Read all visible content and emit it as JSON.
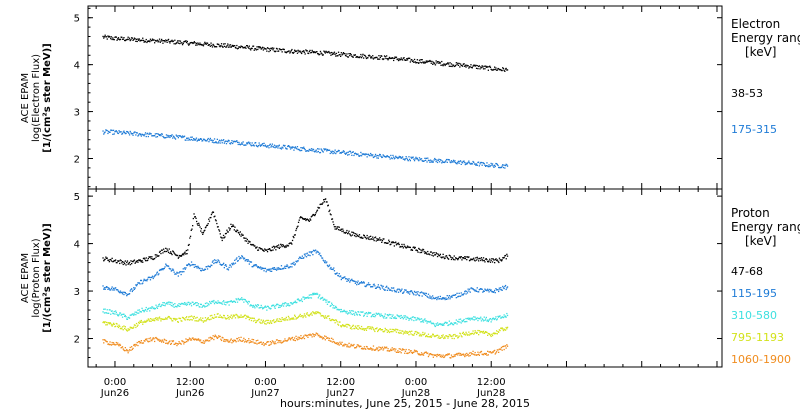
{
  "chart_data": {
    "type": "scatter",
    "x_axis": {
      "title": "hours:minutes, June 25, 2015 - June 28, 2015",
      "range_hours": [
        -4.3,
        96.8
      ],
      "ticks": [
        {
          "hours": 0,
          "time": "0:00",
          "date": "Jun26"
        },
        {
          "hours": 12,
          "time": "12:00",
          "date": "Jun26"
        },
        {
          "hours": 24,
          "time": "0:00",
          "date": "Jun27"
        },
        {
          "hours": 36,
          "time": "12:00",
          "date": "Jun27"
        },
        {
          "hours": 48,
          "time": "0:00",
          "date": "Jun28"
        },
        {
          "hours": 60,
          "time": "12:00",
          "date": "Jun28"
        }
      ]
    },
    "panels": [
      {
        "id": "electron",
        "ylabel": [
          "ACE EPAM",
          "log(Electron Flux)",
          "[1/(cm²s ster MeV)]"
        ],
        "ylim": [
          1.35,
          5.25
        ],
        "yticks": [
          2,
          3,
          4,
          5
        ],
        "legend": {
          "title": [
            "Electron",
            "Energy ranges"
          ],
          "unit": "[keV]"
        },
        "series": [
          {
            "name": "38-53",
            "color": "#000000",
            "x": [
              -2,
              0,
              4,
              8,
              12,
              16,
              20,
              24,
              28,
              32,
              36,
              40,
              44,
              48,
              52,
              56,
              60,
              62.5
            ],
            "y": [
              4.6,
              4.57,
              4.54,
              4.51,
              4.47,
              4.43,
              4.39,
              4.34,
              4.3,
              4.27,
              4.23,
              4.19,
              4.15,
              4.09,
              4.04,
              3.99,
              3.93,
              3.9
            ]
          },
          {
            "name": "175-315",
            "color": "#1e7bd6",
            "x": [
              -2,
              0,
              4,
              8,
              12,
              16,
              20,
              24,
              28,
              32,
              36,
              40,
              44,
              48,
              52,
              56,
              60,
              62.5
            ],
            "y": [
              2.58,
              2.57,
              2.53,
              2.49,
              2.44,
              2.39,
              2.35,
              2.29,
              2.24,
              2.19,
              2.14,
              2.09,
              2.04,
              2.0,
              1.96,
              1.92,
              1.87,
              1.85
            ]
          }
        ]
      },
      {
        "id": "proton",
        "ylabel": [
          "ACE EPAM",
          "log(Proton Flux)",
          "[1/(cm²s ster MeV)]"
        ],
        "ylim": [
          1.4,
          5.15
        ],
        "yticks": [
          2,
          3,
          4,
          5
        ],
        "legend": {
          "title": [
            "Proton",
            "Energy ranges"
          ],
          "unit": "[keV]"
        },
        "series": [
          {
            "name": "47-68",
            "color": "#000000",
            "x": [
              -2,
              0,
              2,
              4,
              6,
              8,
              10,
              11.5,
              12.5,
              14,
              15.5,
              17,
              18.5,
              20,
              22,
              24,
              26,
              28,
              29.5,
              31,
              32.5,
              33.5,
              35,
              38,
              42,
              46,
              49,
              52,
              55,
              58,
              61,
              62.5
            ],
            "y": [
              3.7,
              3.65,
              3.6,
              3.65,
              3.72,
              3.9,
              3.75,
              3.85,
              4.6,
              4.2,
              4.7,
              4.1,
              4.4,
              4.2,
              3.95,
              3.85,
              3.95,
              4.0,
              4.55,
              4.5,
              4.8,
              4.95,
              4.35,
              4.2,
              4.1,
              3.95,
              3.85,
              3.75,
              3.7,
              3.68,
              3.65,
              3.75
            ]
          },
          {
            "name": "115-195",
            "color": "#1e7bd6",
            "x": [
              -2,
              0,
              2,
              4,
              6,
              8,
              10,
              12,
              14,
              16,
              18,
              20,
              22,
              24,
              26,
              28,
              30,
              32,
              34,
              36,
              38,
              42,
              46,
              49,
              51,
              54,
              57,
              60,
              62.5
            ],
            "y": [
              3.1,
              3.05,
              2.95,
              3.2,
              3.3,
              3.55,
              3.35,
              3.6,
              3.45,
              3.65,
              3.5,
              3.75,
              3.55,
              3.45,
              3.5,
              3.55,
              3.75,
              3.85,
              3.55,
              3.3,
              3.2,
              3.1,
              3.0,
              2.95,
              2.85,
              2.9,
              3.05,
              3.0,
              3.1
            ]
          },
          {
            "name": "310-580",
            "color": "#3ee0e0",
            "x": [
              -2,
              0,
              2,
              4,
              6,
              8,
              10,
              12,
              14,
              16,
              18,
              20,
              22,
              24,
              26,
              28,
              30,
              32,
              34,
              36,
              38,
              42,
              46,
              49,
              51,
              54,
              57,
              60,
              62.5
            ],
            "y": [
              2.6,
              2.55,
              2.45,
              2.6,
              2.65,
              2.75,
              2.7,
              2.75,
              2.7,
              2.8,
              2.75,
              2.85,
              2.7,
              2.65,
              2.7,
              2.75,
              2.85,
              2.95,
              2.75,
              2.6,
              2.55,
              2.5,
              2.45,
              2.4,
              2.3,
              2.35,
              2.45,
              2.4,
              2.5
            ]
          },
          {
            "name": "795-1193",
            "color": "#d2e21a",
            "x": [
              -2,
              0,
              2,
              4,
              6,
              8,
              10,
              12,
              14,
              16,
              18,
              20,
              22,
              24,
              26,
              28,
              30,
              32,
              34,
              36,
              38,
              42,
              46,
              49,
              51,
              54,
              57,
              60,
              62.5
            ],
            "y": [
              2.35,
              2.3,
              2.2,
              2.35,
              2.4,
              2.45,
              2.4,
              2.45,
              2.4,
              2.5,
              2.45,
              2.5,
              2.4,
              2.35,
              2.4,
              2.45,
              2.5,
              2.55,
              2.45,
              2.3,
              2.25,
              2.2,
              2.15,
              2.1,
              2.05,
              2.05,
              2.15,
              2.1,
              2.25
            ]
          },
          {
            "name": "1060-1900",
            "color": "#f08c1e",
            "x": [
              -2,
              0,
              2,
              4,
              6,
              8,
              10,
              12,
              14,
              16,
              18,
              20,
              22,
              24,
              26,
              28,
              30,
              32,
              34,
              36,
              38,
              42,
              46,
              49,
              51,
              54,
              57,
              60,
              62.5
            ],
            "y": [
              1.95,
              1.9,
              1.75,
              1.95,
              2.0,
              1.95,
              1.9,
              2.0,
              1.95,
              2.05,
              1.95,
              2.0,
              1.95,
              1.9,
              1.95,
              2.0,
              2.05,
              2.1,
              2.0,
              1.9,
              1.85,
              1.8,
              1.75,
              1.7,
              1.65,
              1.65,
              1.7,
              1.7,
              1.85
            ]
          }
        ]
      }
    ]
  }
}
